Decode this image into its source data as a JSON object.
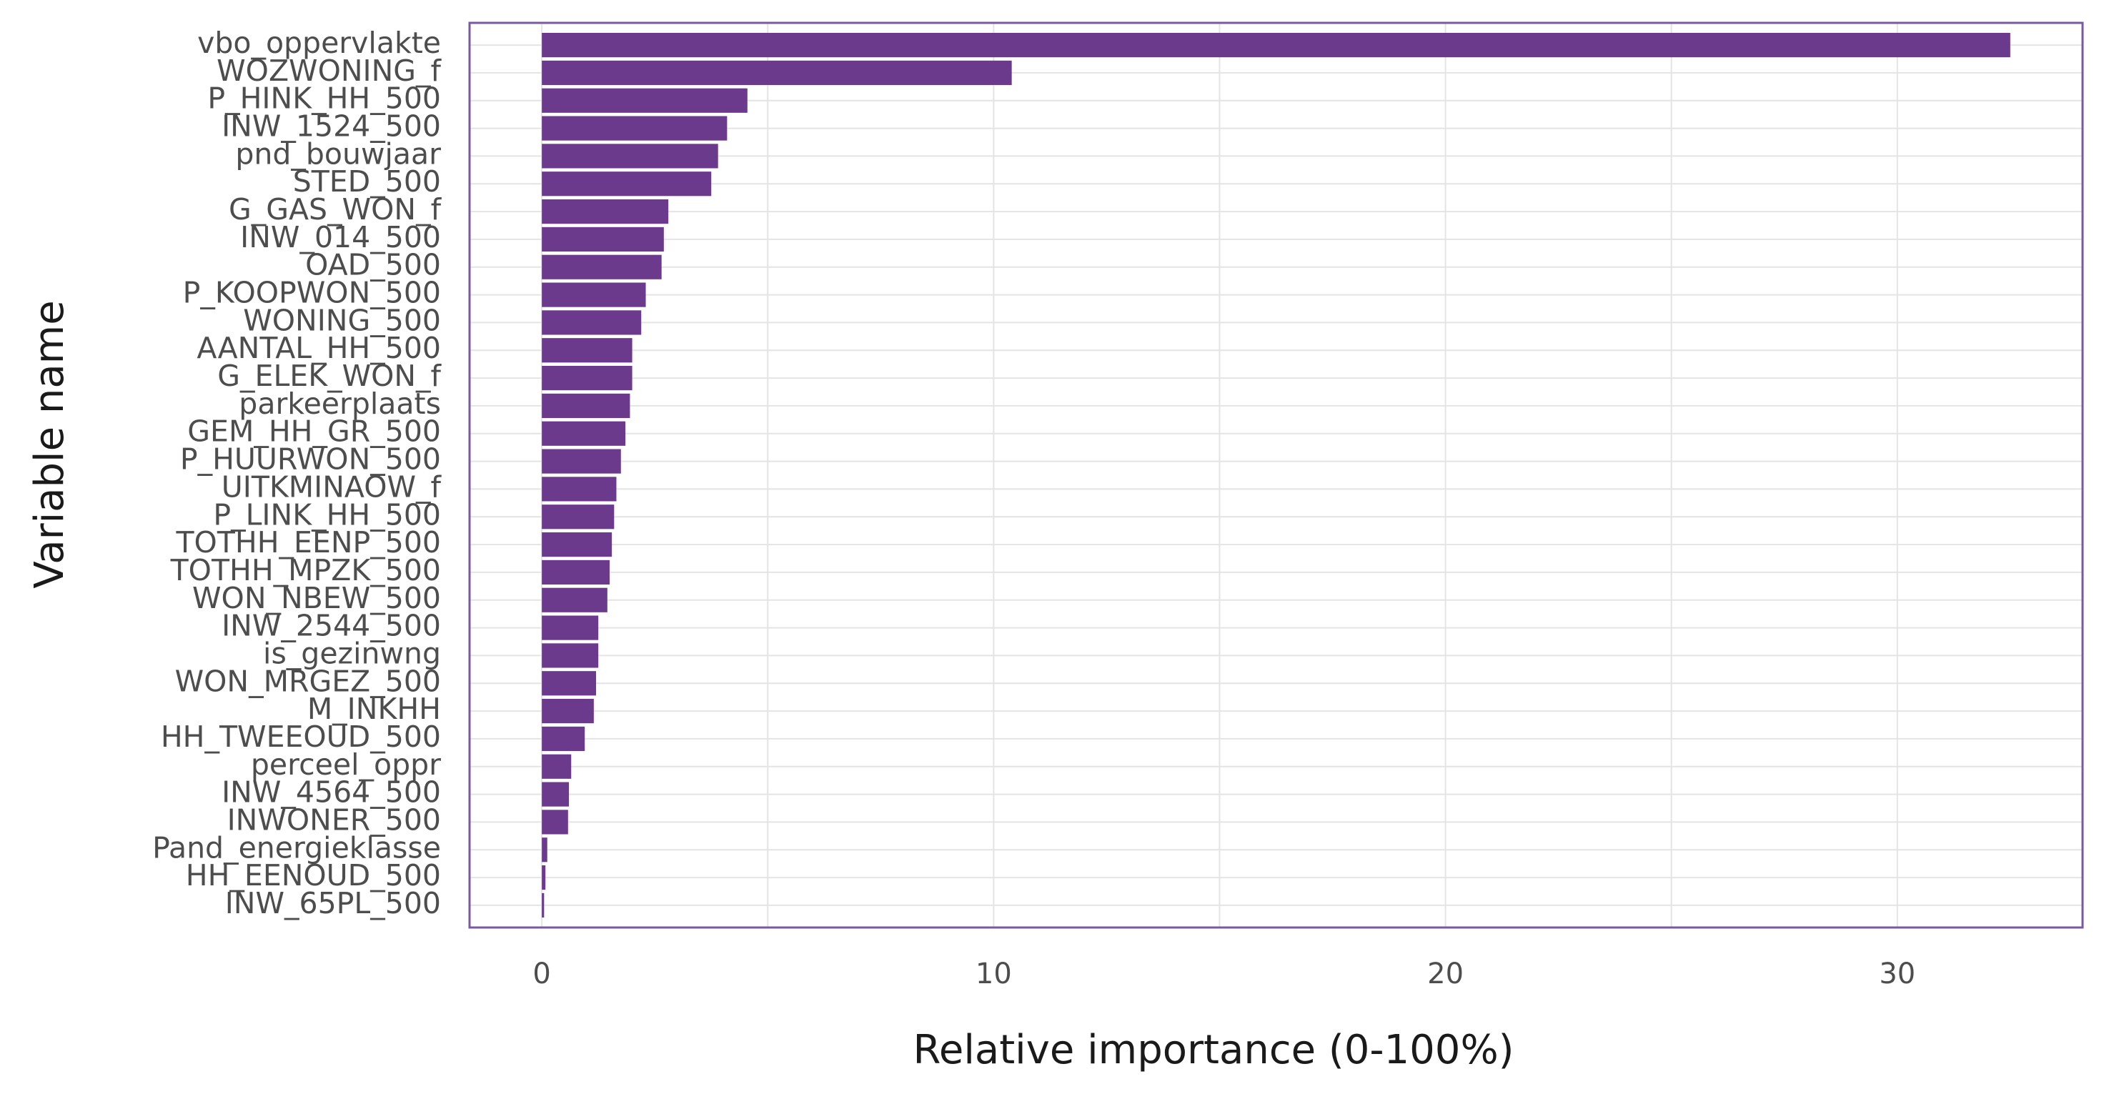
{
  "chart_data": {
    "type": "bar",
    "orientation": "horizontal",
    "xlabel": "Relative importance (0-100%)",
    "ylabel": "Variable name",
    "xlim": [
      -1.6,
      34.1
    ],
    "xticks": [
      0,
      10,
      20,
      30
    ],
    "grid": true,
    "bar_color": "#6b3a8c",
    "frame_color": "#7a5a9e",
    "categories": [
      "vbo_oppervlakte",
      "WOZWONING_f",
      "P_HINK_HH_500",
      "INW_1524_500",
      "pnd_bouwjaar",
      "STED_500",
      "G_GAS_WON_f",
      "INW_014_500",
      "OAD_500",
      "P_KOOPWON_500",
      "WONING_500",
      "AANTAL_HH_500",
      "G_ELEK_WON_f",
      "parkeerplaats",
      "GEM_HH_GR_500",
      "P_HUURWON_500",
      "UITKMINAOW_f",
      "P_LINK_HH_500",
      "TOTHH_EENP_500",
      "TOTHH_MPZK_500",
      "WON_NBEW_500",
      "INW_2544_500",
      "is_gezinwng",
      "WON_MRGEZ_500",
      "M_INKHH",
      "HH_TWEEOUD_500",
      "perceel_oppr",
      "INW_4564_500",
      "INWONER_500",
      "Pand_energieklasse",
      "HH_EENOUD_500",
      "INW_65PL_500"
    ],
    "values": [
      32.5,
      10.4,
      4.55,
      4.1,
      3.9,
      3.75,
      2.8,
      2.7,
      2.65,
      2.3,
      2.2,
      2.0,
      2.0,
      1.95,
      1.85,
      1.75,
      1.65,
      1.6,
      1.55,
      1.5,
      1.45,
      1.25,
      1.25,
      1.2,
      1.15,
      0.95,
      0.65,
      0.6,
      0.58,
      0.12,
      0.08,
      0.05
    ]
  }
}
